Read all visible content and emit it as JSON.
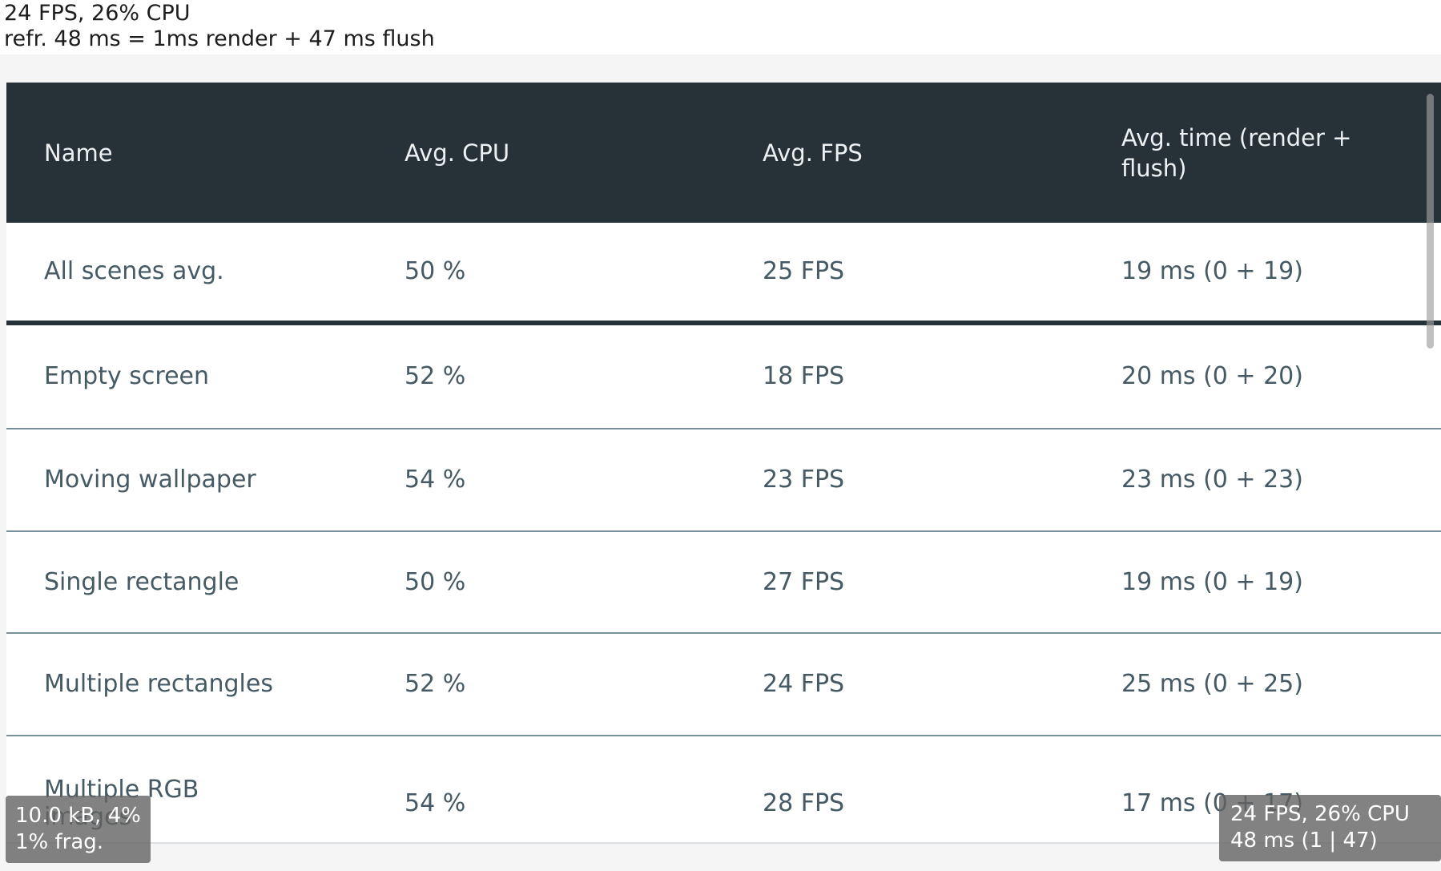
{
  "status_bar": {
    "line1": "24 FPS, 26% CPU",
    "line2": "refr. 48 ms = 1ms render + 47 ms flush"
  },
  "table": {
    "columns": [
      {
        "key": "name",
        "label": "Name"
      },
      {
        "key": "cpu",
        "label": "Avg. CPU"
      },
      {
        "key": "fps",
        "label": "Avg. FPS"
      },
      {
        "key": "time",
        "label": "Avg. time (render + flush)"
      }
    ],
    "rows": [
      {
        "name": "All scenes avg.",
        "cpu": "50 %",
        "fps": "25 FPS",
        "time": "19 ms (0 + 19)"
      },
      {
        "name": "Empty screen",
        "cpu": "52 %",
        "fps": "18 FPS",
        "time": "20 ms (0 + 20)"
      },
      {
        "name": "Moving wallpaper",
        "cpu": "54 %",
        "fps": "23 FPS",
        "time": "23 ms (0 + 23)"
      },
      {
        "name": "Single rectangle",
        "cpu": "50 %",
        "fps": "27 FPS",
        "time": "19 ms (0 + 19)"
      },
      {
        "name": "Multiple rectangles",
        "cpu": "52 %",
        "fps": "24 FPS",
        "time": "25 ms (0 + 25)"
      },
      {
        "name": "Multiple RGB\nimages",
        "cpu": "54 %",
        "fps": "28 FPS",
        "time": "17 ms (0 + 17)"
      }
    ]
  },
  "overlays": {
    "memory": {
      "line1": "10.0 kB, 4%",
      "line2": "1% frag."
    },
    "perf": {
      "line1": "24 FPS, 26% CPU",
      "line2": "48 ms (1 | 47)"
    }
  },
  "colors": {
    "header_bg": "#263238",
    "row_text": "#455a64",
    "thick_divider": "#263238",
    "thin_divider": "#78909c",
    "page_bg": "#f5f5f5",
    "tooltip_bg": "rgba(99,99,99,0.8)",
    "tooltip_text": "#ffffff",
    "header_text": "#eef1f2"
  }
}
